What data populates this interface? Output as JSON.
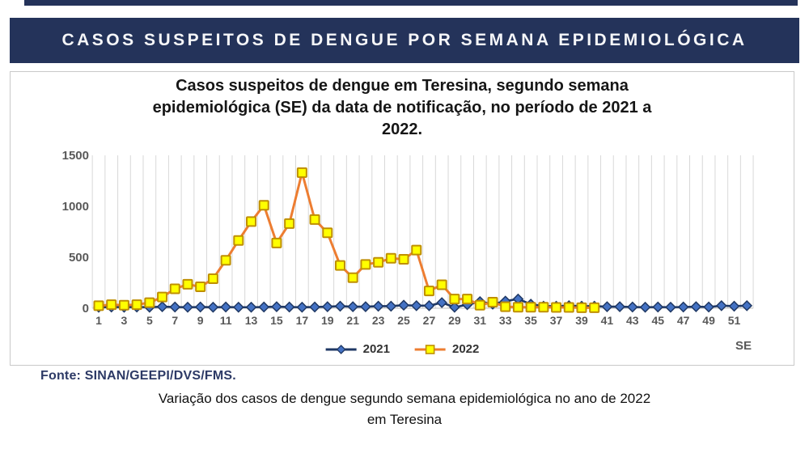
{
  "page": {
    "header_title": "CASOS SUSPEITOS DE DENGUE POR SEMANA EPIDEMIOLÓGICA",
    "source_text": "Fonte: SINAN/GEEPI/DVS/FMS.",
    "caption_line1": "Variação dos casos de dengue segundo semana epidemiológica no ano de 2022",
    "caption_line2": "em Teresina"
  },
  "colors": {
    "header_bg": "#24335A",
    "header_text": "#F5F6F8",
    "source_text": "#2D3A66",
    "gridline": "#D8D8D8",
    "axis_text": "#595959",
    "panel_border": "#C9C9C9"
  },
  "chart_data": {
    "type": "line",
    "title": "Casos suspeitos de dengue em Teresina, segundo semana epidemiológica (SE) da data de notificação, no período de 2021 a 2022.",
    "title_lines": [
      "Casos suspeitos de dengue em Teresina, segundo semana",
      "epidemiológica (SE) da data de notificação, no período de 2021 a",
      "2022."
    ],
    "xlabel": "SE",
    "ylabel": "",
    "ylim": [
      0,
      1500
    ],
    "yticks": [
      0,
      500,
      1000,
      1500
    ],
    "xticks": [
      1,
      3,
      5,
      7,
      9,
      11,
      13,
      15,
      17,
      19,
      21,
      23,
      25,
      27,
      29,
      31,
      33,
      35,
      37,
      39,
      41,
      43,
      45,
      47,
      49,
      51
    ],
    "x_count": 52,
    "grid": "vertical",
    "legend_position": "bottom",
    "series": [
      {
        "name": "2021",
        "marker": "diamond",
        "line_color": "#1F3864",
        "marker_fill": "#4472C4",
        "marker_border": "#1F3864",
        "values": [
          10,
          12,
          10,
          12,
          10,
          15,
          12,
          10,
          12,
          10,
          12,
          10,
          10,
          12,
          15,
          12,
          10,
          12,
          15,
          20,
          15,
          15,
          20,
          20,
          30,
          25,
          25,
          55,
          10,
          35,
          65,
          40,
          70,
          90,
          40,
          20,
          20,
          25,
          20,
          20,
          15,
          15,
          12,
          10,
          12,
          10,
          12,
          15,
          12,
          25,
          20,
          25
        ]
      },
      {
        "name": "2022",
        "marker": "square",
        "line_color": "#ED7D31",
        "marker_fill": "#FFFF00",
        "marker_border": "#BF8F00",
        "values": [
          25,
          35,
          30,
          35,
          55,
          110,
          190,
          235,
          210,
          290,
          470,
          665,
          850,
          1010,
          640,
          830,
          1330,
          870,
          740,
          420,
          300,
          430,
          450,
          490,
          480,
          570,
          170,
          230,
          90,
          90,
          30,
          60,
          15,
          10,
          10,
          10,
          8,
          8,
          5,
          5
        ]
      }
    ]
  }
}
